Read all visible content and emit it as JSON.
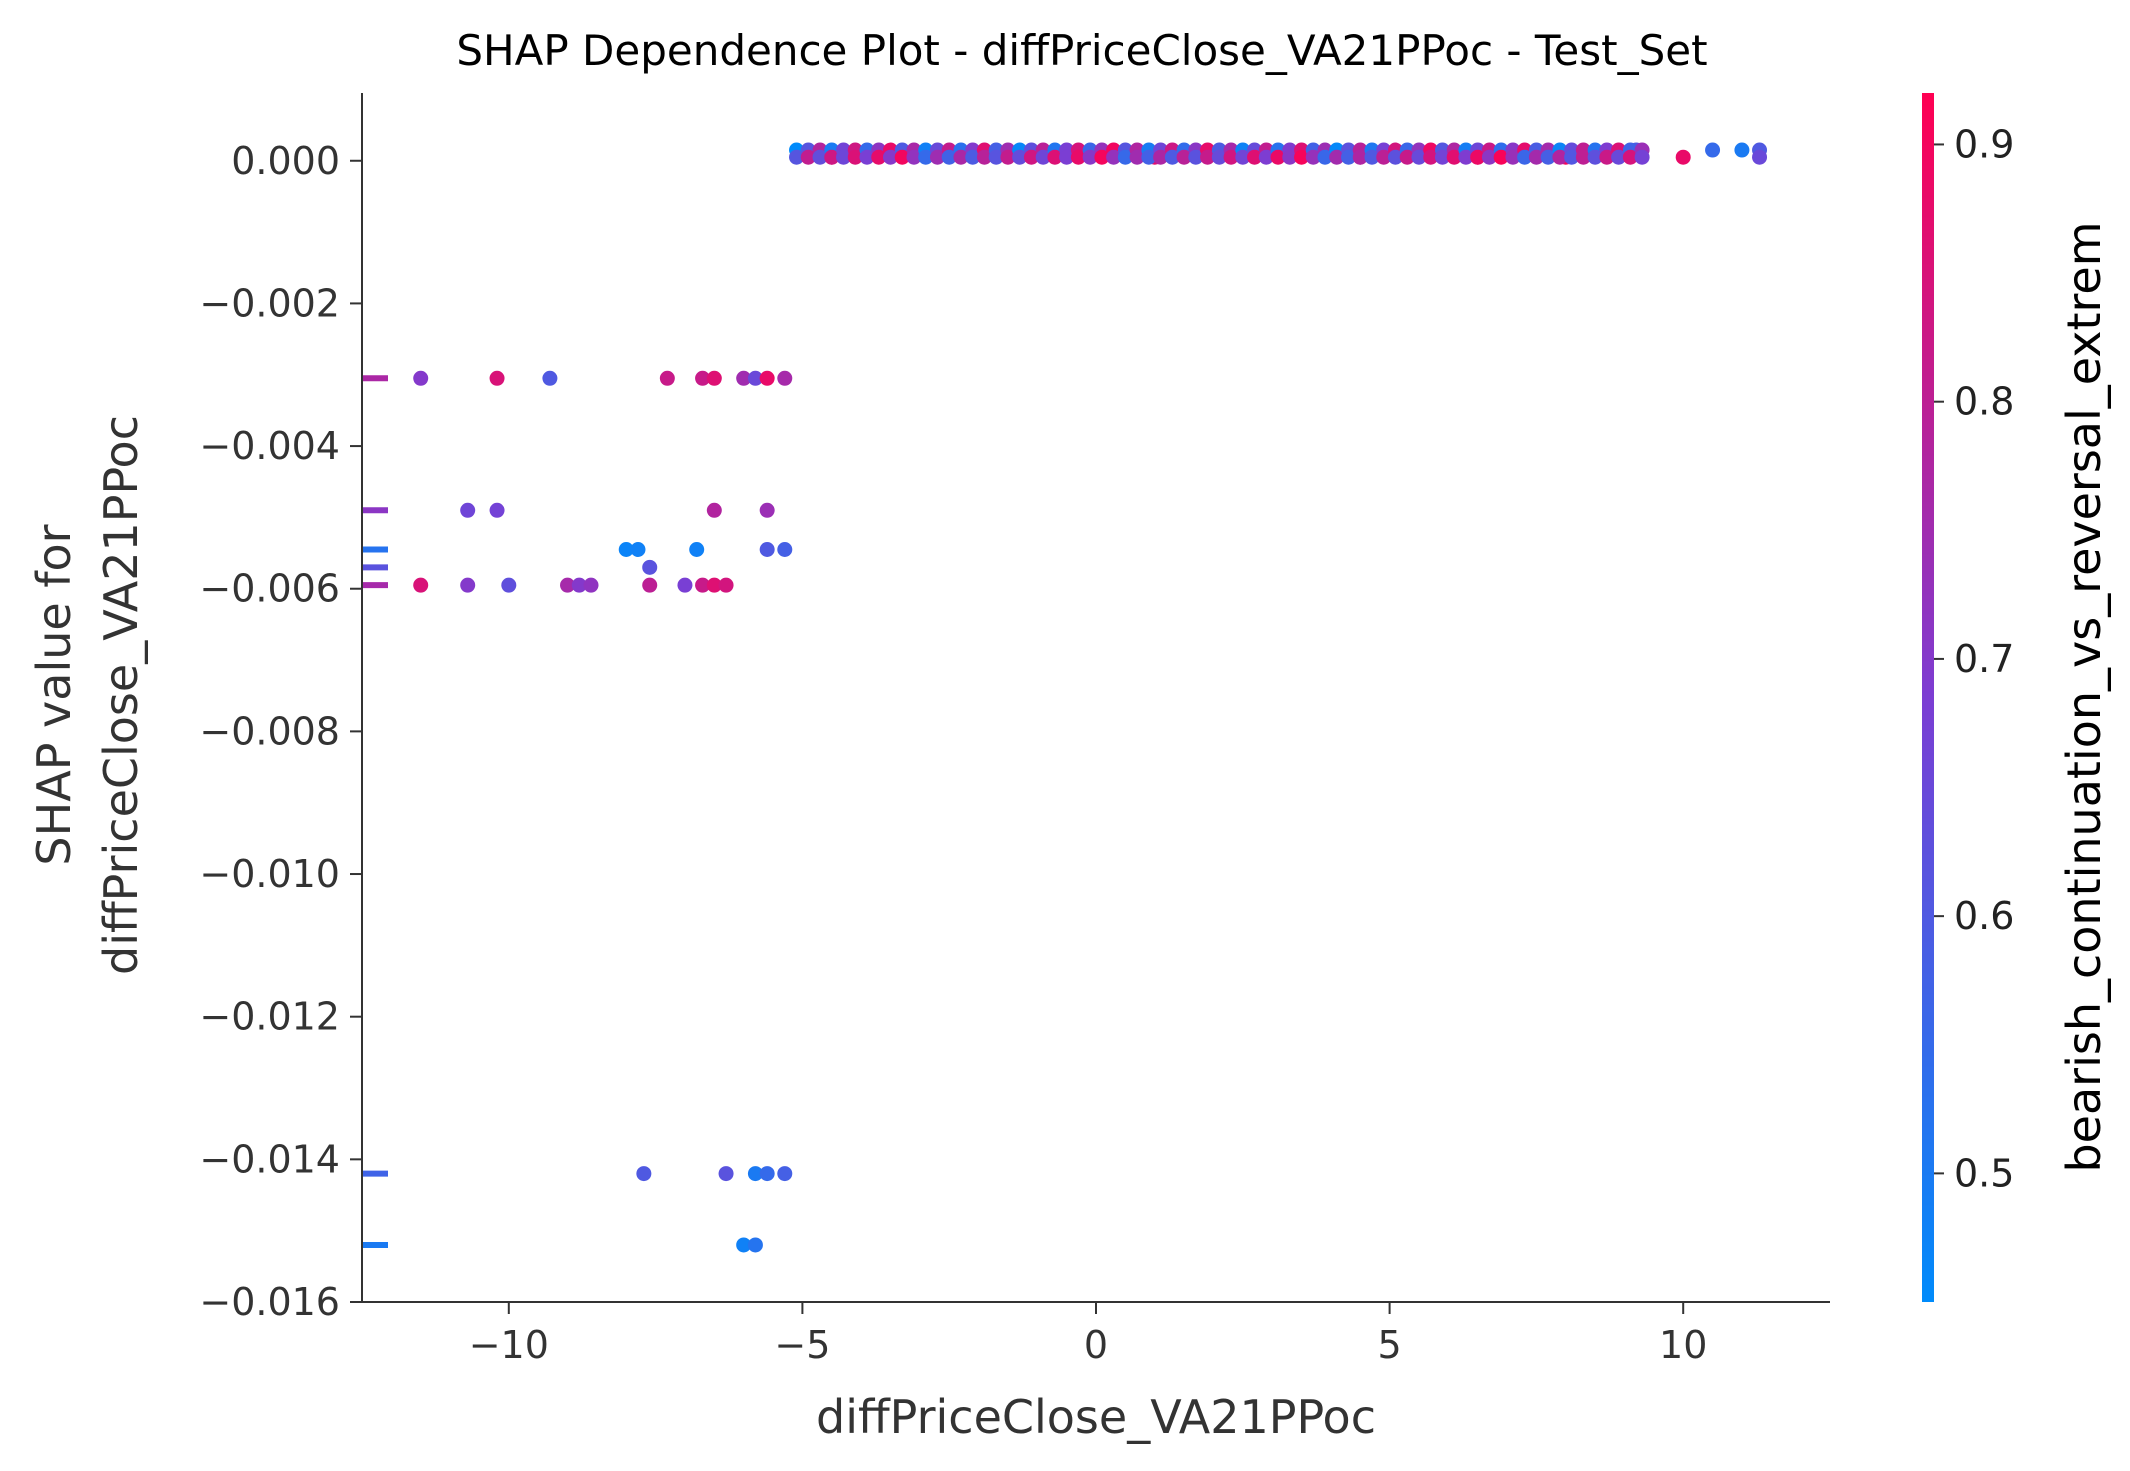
{
  "chart_data": {
    "type": "scatter",
    "title": "SHAP Dependence Plot - diffPriceClose_VA21PPoc - Test_Set",
    "xlabel": "diffPriceClose_VA21PPoc",
    "ylabel_lines": [
      "SHAP value for",
      "diffPriceClose_VA21PPoc"
    ],
    "xlim": [
      -12.5,
      12.5
    ],
    "ylim": [
      -0.016,
      0.00095
    ],
    "xticks": [
      {
        "value": -10,
        "label": "−10"
      },
      {
        "value": -5,
        "label": "−5"
      },
      {
        "value": 0,
        "label": "0"
      },
      {
        "value": 5,
        "label": "5"
      },
      {
        "value": 10,
        "label": "10"
      }
    ],
    "yticks": [
      {
        "value": 0.0,
        "label": "0.000"
      },
      {
        "value": -0.002,
        "label": "−0.002"
      },
      {
        "value": -0.004,
        "label": "−0.004"
      },
      {
        "value": -0.006,
        "label": "−0.006"
      },
      {
        "value": -0.008,
        "label": "−0.008"
      },
      {
        "value": -0.01,
        "label": "−0.010"
      },
      {
        "value": -0.012,
        "label": "−0.012"
      },
      {
        "value": -0.014,
        "label": "−0.014"
      },
      {
        "value": -0.016,
        "label": "−0.016"
      }
    ],
    "grid": false,
    "colorbar": {
      "label": "bearish_continuation_vs_reversal_extrem",
      "range": [
        0.45,
        0.92
      ],
      "ticks": [
        {
          "value": 0.5,
          "label": "0.5"
        },
        {
          "value": 0.6,
          "label": "0.6"
        },
        {
          "value": 0.7,
          "label": "0.7"
        },
        {
          "value": 0.8,
          "label": "0.8"
        },
        {
          "value": 0.9,
          "label": "0.9"
        }
      ],
      "colors": {
        "low": "#008bfb",
        "mid": "#7c3dd3",
        "high": "#ff0052"
      }
    },
    "points": [
      {
        "x": -11.5,
        "y": -0.00305,
        "c": 0.7
      },
      {
        "x": -10.2,
        "y": -0.00305,
        "c": 0.85
      },
      {
        "x": -9.3,
        "y": -0.00305,
        "c": 0.6
      },
      {
        "x": -7.3,
        "y": -0.00305,
        "c": 0.82
      },
      {
        "x": -6.7,
        "y": -0.00305,
        "c": 0.82
      },
      {
        "x": -6.5,
        "y": -0.00305,
        "c": 0.86
      },
      {
        "x": -6.0,
        "y": -0.00305,
        "c": 0.75
      },
      {
        "x": -5.8,
        "y": -0.00305,
        "c": 0.65
      },
      {
        "x": -5.6,
        "y": -0.00305,
        "c": 0.88
      },
      {
        "x": -5.3,
        "y": -0.00305,
        "c": 0.76
      },
      {
        "x": -10.7,
        "y": -0.0049,
        "c": 0.66
      },
      {
        "x": -10.2,
        "y": -0.0049,
        "c": 0.67
      },
      {
        "x": -6.5,
        "y": -0.0049,
        "c": 0.78
      },
      {
        "x": -5.6,
        "y": -0.0049,
        "c": 0.74
      },
      {
        "x": -8.0,
        "y": -0.00545,
        "c": 0.47
      },
      {
        "x": -7.8,
        "y": -0.00545,
        "c": 0.48
      },
      {
        "x": -6.8,
        "y": -0.00545,
        "c": 0.48
      },
      {
        "x": -5.6,
        "y": -0.00545,
        "c": 0.6
      },
      {
        "x": -5.3,
        "y": -0.00545,
        "c": 0.58
      },
      {
        "x": -7.6,
        "y": -0.0057,
        "c": 0.62
      },
      {
        "x": -11.5,
        "y": -0.00595,
        "c": 0.85
      },
      {
        "x": -10.7,
        "y": -0.00595,
        "c": 0.7
      },
      {
        "x": -10.0,
        "y": -0.00595,
        "c": 0.63
      },
      {
        "x": -9.0,
        "y": -0.00595,
        "c": 0.76
      },
      {
        "x": -8.8,
        "y": -0.00595,
        "c": 0.7
      },
      {
        "x": -8.6,
        "y": -0.00595,
        "c": 0.72
      },
      {
        "x": -7.6,
        "y": -0.00595,
        "c": 0.8
      },
      {
        "x": -7.0,
        "y": -0.00595,
        "c": 0.68
      },
      {
        "x": -6.7,
        "y": -0.00595,
        "c": 0.82
      },
      {
        "x": -6.5,
        "y": -0.00595,
        "c": 0.86
      },
      {
        "x": -6.3,
        "y": -0.00595,
        "c": 0.84
      },
      {
        "x": -7.7,
        "y": -0.0142,
        "c": 0.6
      },
      {
        "x": -6.3,
        "y": -0.0142,
        "c": 0.62
      },
      {
        "x": -5.8,
        "y": -0.0142,
        "c": 0.5
      },
      {
        "x": -5.6,
        "y": -0.0142,
        "c": 0.55
      },
      {
        "x": -5.3,
        "y": -0.0142,
        "c": 0.58
      },
      {
        "x": -6.0,
        "y": -0.0152,
        "c": 0.48
      },
      {
        "x": -5.8,
        "y": -0.0152,
        "c": 0.52
      },
      {
        "x": -4.5,
        "y": 5e-05,
        "c": 0.9
      },
      {
        "x": 1.0,
        "y": 5e-05,
        "c": 0.87
      },
      {
        "x": 4.5,
        "y": 5e-05,
        "c": 0.82
      },
      {
        "x": 6.5,
        "y": 5e-05,
        "c": 0.86
      },
      {
        "x": 8.0,
        "y": 5e-05,
        "c": 0.9
      },
      {
        "x": 10.0,
        "y": 5e-05,
        "c": 0.88
      },
      {
        "x": 10.5,
        "y": 0.00015,
        "c": 0.55
      },
      {
        "x": 11.0,
        "y": 0.00015,
        "c": 0.5
      },
      {
        "x": 11.3,
        "y": 0.00015,
        "c": 0.6
      },
      {
        "x": 11.3,
        "y": 5e-05,
        "c": 0.65
      },
      {
        "x": 9.2,
        "y": 0.00015,
        "c": 0.6
      }
    ],
    "band": {
      "x_start": -5.1,
      "x_end": 9.3,
      "x_step": 0.2,
      "y_upper": 0.00015,
      "y_lower": 5e-05
    }
  }
}
